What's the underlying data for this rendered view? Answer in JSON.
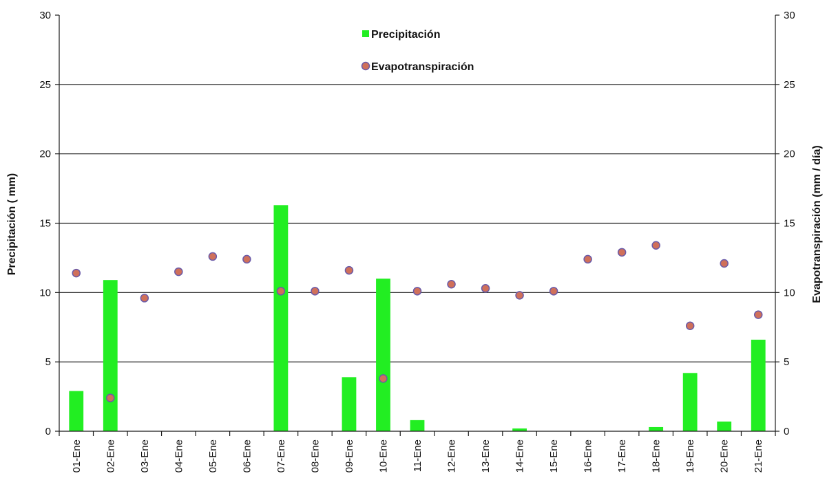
{
  "chart_data": {
    "type": "bar",
    "categories": [
      "01-Ene",
      "02-Ene",
      "03-Ene",
      "04-Ene",
      "05-Ene",
      "06-Ene",
      "07-Ene",
      "08-Ene",
      "09-Ene",
      "10-Ene",
      "11-Ene",
      "12-Ene",
      "13-Ene",
      "14-Ene",
      "15-Ene",
      "16-Ene",
      "17-Ene",
      "18-Ene",
      "19-Ene",
      "20-Ene",
      "21-Ene"
    ],
    "series": [
      {
        "name": "Precipitación",
        "kind": "bar",
        "axis": "left",
        "color": "#22ee22",
        "values": [
          2.9,
          10.9,
          0,
          0,
          0,
          0,
          16.3,
          0,
          3.9,
          11.0,
          0.8,
          0,
          0,
          0.2,
          0,
          0,
          0,
          0.3,
          4.2,
          0.7,
          6.6
        ]
      },
      {
        "name": "Evapotranspiración",
        "kind": "scatter",
        "axis": "right",
        "color": "#d0705a",
        "stroke": "#6a5aa8",
        "values": [
          11.4,
          2.4,
          9.6,
          11.5,
          12.6,
          12.4,
          10.1,
          10.1,
          11.6,
          3.8,
          10.1,
          10.6,
          10.3,
          9.8,
          10.1,
          12.4,
          12.9,
          13.4,
          7.6,
          12.1,
          8.4
        ]
      }
    ],
    "ylabel": "Precipitación ( mm)",
    "y2label": "Evapotranspiración (mm / día)",
    "ylim": [
      0,
      30
    ],
    "y2lim": [
      0,
      30
    ],
    "yticks": [
      0,
      5,
      10,
      15,
      20,
      25,
      30
    ],
    "grid": true,
    "legend_position": "top-center"
  }
}
